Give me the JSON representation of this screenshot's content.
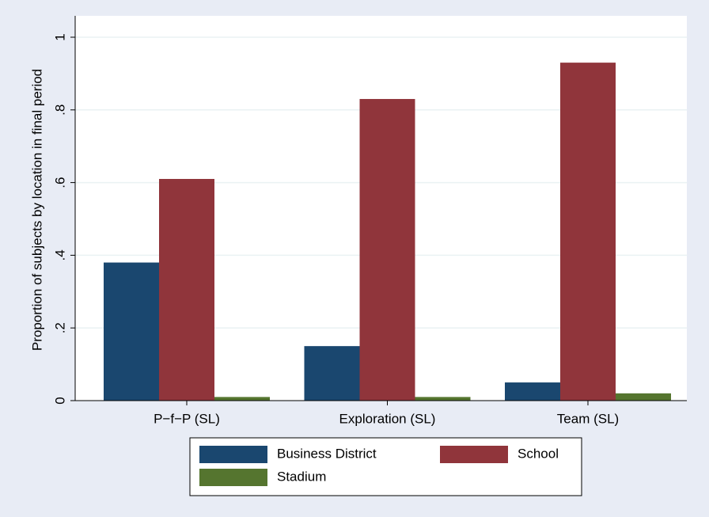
{
  "chart_data": {
    "type": "bar",
    "y_axis_label": "Proportion of subjects by location in final period",
    "categories": [
      "P−f−P (SL)",
      "Exploration (SL)",
      "Team (SL)"
    ],
    "series": [
      {
        "name": "Business District",
        "color": "#1a476f",
        "values": [
          0.38,
          0.15,
          0.05
        ]
      },
      {
        "name": "School",
        "color": "#90353b",
        "values": [
          0.61,
          0.83,
          0.93
        ]
      },
      {
        "name": "Stadium",
        "color": "#55752f",
        "values": [
          0.01,
          0.01,
          0.02
        ]
      }
    ],
    "ylim": [
      0,
      1
    ],
    "yticks": [
      0,
      {
        "value": 0.2,
        "label": ".2"
      },
      {
        "value": 0.4,
        "label": ".4"
      },
      {
        "value": 0.6,
        "label": ".6"
      },
      {
        "value": 0.8,
        "label": ".8"
      },
      1
    ],
    "grid": true,
    "legend": "bottom"
  }
}
